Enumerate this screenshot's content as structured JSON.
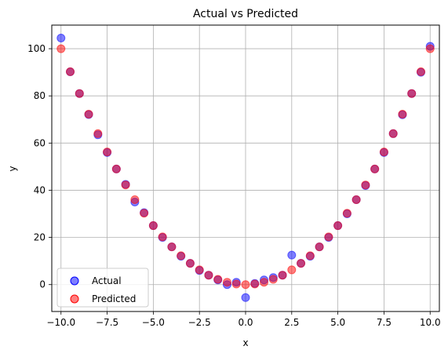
{
  "chart_data": {
    "type": "scatter",
    "title": "Actual vs Predicted",
    "xlabel": "x",
    "ylabel": "y",
    "xlim": [
      -10.5,
      10.5
    ],
    "ylim": [
      -11.4,
      110
    ],
    "xticks": [
      -10.0,
      -7.5,
      -5.0,
      -2.5,
      0.0,
      2.5,
      5.0,
      7.5,
      10.0
    ],
    "xtick_labels": [
      "−10.0",
      "−7.5",
      "−5.0",
      "−2.5",
      "0.0",
      "2.5",
      "5.0",
      "7.5",
      "10.0"
    ],
    "yticks": [
      0,
      20,
      40,
      60,
      80,
      100
    ],
    "ytick_labels": [
      "0",
      "20",
      "40",
      "60",
      "80",
      "100"
    ],
    "grid": true,
    "legend_position": "lower-left",
    "series": [
      {
        "name": "Actual",
        "color": "#0000ff",
        "x": [
          -10.0,
          -9.5,
          -9.0,
          -8.5,
          -8.0,
          -7.5,
          -7.0,
          -6.5,
          -6.0,
          -5.5,
          -5.0,
          -4.5,
          -4.0,
          -3.5,
          -3.0,
          -2.5,
          -2.0,
          -1.5,
          -1.0,
          -0.5,
          0.0,
          0.5,
          1.0,
          1.5,
          2.0,
          2.5,
          3.0,
          3.5,
          4.0,
          4.5,
          5.0,
          5.5,
          6.0,
          6.5,
          7.0,
          7.5,
          8.0,
          8.5,
          9.0,
          9.5,
          10.0
        ],
        "y": [
          104.5,
          90.2,
          81.0,
          72.1,
          63.5,
          56.0,
          49.0,
          42.5,
          35.0,
          30.5,
          25.0,
          20.0,
          16.0,
          12.0,
          9.0,
          6.0,
          4.0,
          2.0,
          0.0,
          1.0,
          -5.5,
          0.5,
          2.0,
          3.0,
          4.0,
          12.5,
          9.0,
          12.0,
          16.0,
          20.0,
          25.0,
          30.0,
          36.0,
          42.0,
          49.0,
          56.0,
          64.0,
          72.0,
          81.0,
          90.0,
          101.0
        ]
      },
      {
        "name": "Predicted",
        "color": "#ff0000",
        "x": [
          -10.0,
          -9.5,
          -9.0,
          -8.5,
          -8.0,
          -7.5,
          -7.0,
          -6.5,
          -6.0,
          -5.5,
          -5.0,
          -4.5,
          -4.0,
          -3.5,
          -3.0,
          -2.5,
          -2.0,
          -1.5,
          -1.0,
          -0.5,
          0.0,
          0.5,
          1.0,
          1.5,
          2.0,
          2.5,
          3.0,
          3.5,
          4.0,
          4.5,
          5.0,
          5.5,
          6.0,
          6.5,
          7.0,
          7.5,
          8.0,
          8.5,
          9.0,
          9.5,
          10.0
        ],
        "y": [
          100.0,
          90.25,
          81.0,
          72.25,
          64.0,
          56.25,
          49.0,
          42.25,
          36.0,
          30.25,
          25.0,
          20.25,
          16.0,
          12.25,
          9.0,
          6.25,
          4.0,
          2.25,
          1.0,
          0.25,
          0.0,
          0.25,
          1.0,
          2.25,
          4.0,
          6.25,
          9.0,
          12.25,
          16.0,
          20.25,
          25.0,
          30.25,
          36.0,
          42.25,
          49.0,
          56.25,
          64.0,
          72.25,
          81.0,
          90.25,
          100.0
        ]
      }
    ]
  }
}
